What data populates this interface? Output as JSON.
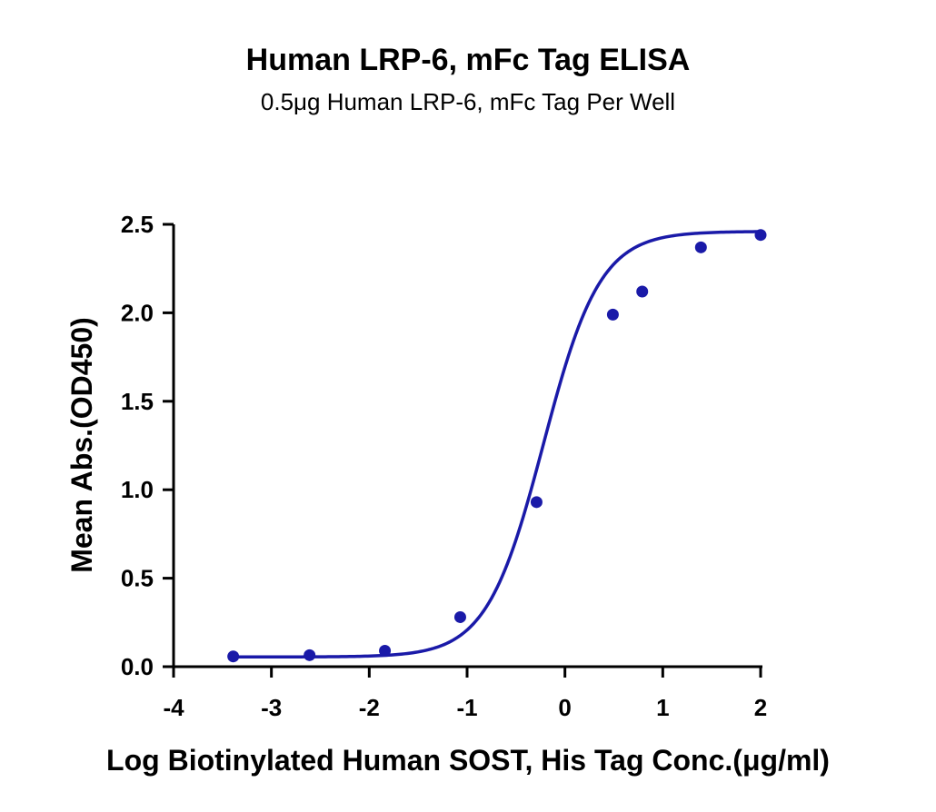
{
  "chart_data": {
    "type": "scatter",
    "title": "Human LRP-6, mFc Tag  ELISA",
    "subtitle": "0.5μg Human LRP-6, mFc Tag Per Well",
    "xlabel": "Log Biotinylated Human SOST, His Tag Conc.(μg/ml)",
    "ylabel": "Mean Abs.(OD450)",
    "xlim": [
      -4,
      2
    ],
    "ylim": [
      0,
      2.5
    ],
    "x_ticks": [
      "-4",
      "-3",
      "-2",
      "-1",
      "0",
      "1",
      "2"
    ],
    "y_ticks": [
      "0.0",
      "0.5",
      "1.0",
      "1.5",
      "2.0",
      "2.5"
    ],
    "grid": false,
    "legend": "none",
    "series": [
      {
        "x": [
          -3.39,
          -2.61,
          -1.84,
          -1.07,
          -0.29,
          0.49,
          0.79,
          1.39,
          2.0
        ],
        "y": [
          0.058,
          0.065,
          0.09,
          0.28,
          0.93,
          1.99,
          2.12,
          2.37,
          2.44
        ],
        "color": "#1a1aa8",
        "fit": "sigmoidal 4PL curve"
      }
    ]
  }
}
